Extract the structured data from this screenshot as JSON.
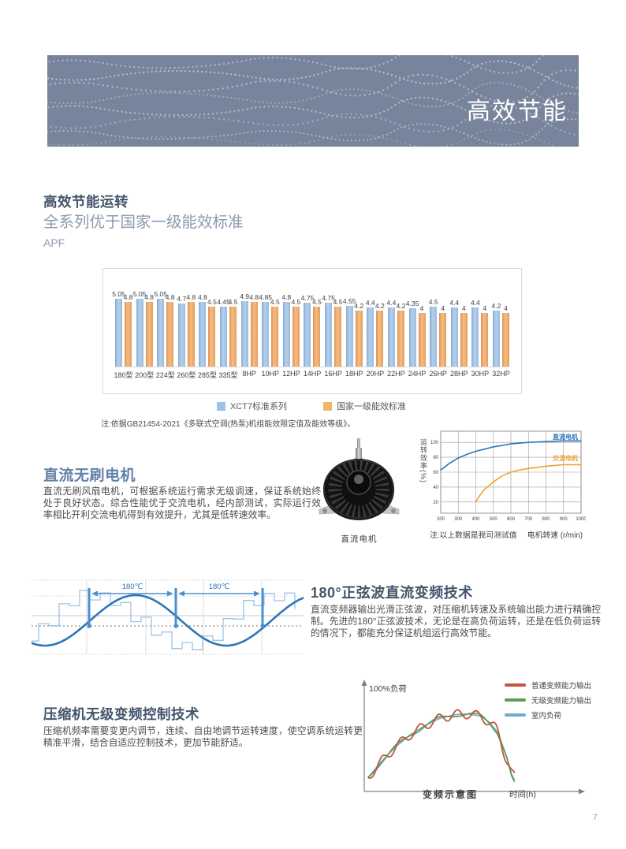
{
  "page": {
    "number": "7"
  },
  "banner": {
    "title": "高效节能"
  },
  "section1": {
    "title": "高效节能运转",
    "subtitle": "全系列优于国家一级能效标准",
    "axis_label": "APF",
    "note": "注:依据GB21454-2021《多联式空调(热泵)机组能效限定值及能效等级》。"
  },
  "section2": {
    "title": "直流无刷电机",
    "body": "直流无刷风扇电机，可根据系统运行需求无级调速，保证系统始终处于良好状态。综合性能优于交流电机，经内部测试，实际运行效率相比开利交流电机得到有效提升，尤其是低转速效率。",
    "image_caption": "直流电机"
  },
  "section3": {
    "title": "180°正弦波直流变频技术",
    "body": "直流变频器输出光滑正弦波，对压缩机转速及系统输出能力进行精确控制。先进的180°正弦波技术，无论是在高负荷运转，还是在低负荷运转的情况下，都能充分保证机组运行高效节能。"
  },
  "section4": {
    "title": "压缩机无级变频控制技术",
    "body": "压缩机频率需要变更内调节，连续、自由地调节运转速度，使空调系统运转更精准平滑，结合自适应控制技术，更加节能舒适。"
  },
  "sine_diagram": {
    "arc_label_1": "180℃",
    "arc_label_2": "180℃"
  },
  "chart_data": [
    {
      "type": "bar",
      "title": "APF",
      "categories": [
        "180型",
        "200型",
        "224型",
        "260型",
        "285型",
        "335型",
        "8HP",
        "10HP",
        "12HP",
        "14HP",
        "16HP",
        "18HP",
        "20HP",
        "22HP",
        "24HP",
        "26HP",
        "28HP",
        "30HP",
        "32HP"
      ],
      "series": [
        {
          "name": "XCT7标准系列",
          "color": "#9DC3E6",
          "values": [
            5.05,
            5.05,
            5.05,
            4.7,
            4.8,
            4.45,
            4.9,
            4.85,
            4.8,
            4.75,
            4.75,
            4.55,
            4.4,
            4.4,
            4.35,
            4.5,
            4.4,
            4.4,
            4.2
          ]
        },
        {
          "name": "国家一级能效标准",
          "color": "#F2B567",
          "values": [
            4.8,
            4.8,
            4.8,
            4.8,
            4.5,
            4.5,
            4.8,
            4.5,
            4.5,
            4.5,
            4.5,
            4.2,
            4.2,
            4.2,
            4,
            4,
            4,
            4,
            4
          ]
        }
      ],
      "ylim": [
        0,
        5.5
      ],
      "grid": false,
      "legend_position": "bottom"
    },
    {
      "type": "line",
      "ylabel": "运转效率(%)",
      "xlabel": "电机转速 (r/min)",
      "note": "注:以上数据是我司测试值",
      "x_ticks": [
        200,
        300,
        400,
        500,
        600,
        700,
        800,
        900,
        1000
      ],
      "y_ticks": [
        20,
        40,
        60,
        80,
        100
      ],
      "xlim": [
        200,
        1000
      ],
      "ylim": [
        5,
        115
      ],
      "grid": true,
      "series": [
        {
          "name": "直流电机",
          "color": "#2E75B6",
          "points": [
            [
              200,
              63
            ],
            [
              250,
              72
            ],
            [
              300,
              79
            ],
            [
              350,
              84
            ],
            [
              400,
              88
            ],
            [
              450,
              91
            ],
            [
              500,
              94
            ],
            [
              550,
              96
            ],
            [
              600,
              98
            ],
            [
              700,
              100
            ],
            [
              800,
              101
            ],
            [
              900,
              102
            ],
            [
              1000,
              102
            ]
          ]
        },
        {
          "name": "交流电机",
          "color": "#F0A030",
          "points": [
            [
              400,
              20
            ],
            [
              420,
              28
            ],
            [
              450,
              37
            ],
            [
              480,
              43
            ],
            [
              500,
              47
            ],
            [
              550,
              55
            ],
            [
              600,
              60
            ],
            [
              650,
              63
            ],
            [
              700,
              65
            ],
            [
              800,
              68
            ],
            [
              900,
              70
            ],
            [
              1000,
              70
            ]
          ]
        }
      ]
    },
    {
      "type": "line",
      "title": "变频示意图",
      "xlabel": "时间(h)",
      "annotation": "100%负荷",
      "legend": [
        "普通变频能力输出",
        "无级变频能力输出",
        "室内负荷"
      ],
      "legend_colors": [
        "#C65240",
        "#56A156",
        "#6FABCD"
      ],
      "series_note": "qualitative curves: indoor load smooth arc, stepless output follows closely, ordinary inverter output oscillates",
      "base_curve_norm": [
        [
          0.01,
          0.12
        ],
        [
          0.07,
          0.27
        ],
        [
          0.14,
          0.42
        ],
        [
          0.21,
          0.54
        ],
        [
          0.28,
          0.63
        ],
        [
          0.35,
          0.7
        ],
        [
          0.42,
          0.735
        ],
        [
          0.48,
          0.74
        ],
        [
          0.54,
          0.72
        ],
        [
          0.58,
          0.66
        ],
        [
          0.62,
          0.56
        ],
        [
          0.645,
          0.42
        ],
        [
          0.665,
          0.3
        ],
        [
          0.685,
          0.13
        ],
        [
          0.7,
          0.07
        ]
      ]
    }
  ]
}
